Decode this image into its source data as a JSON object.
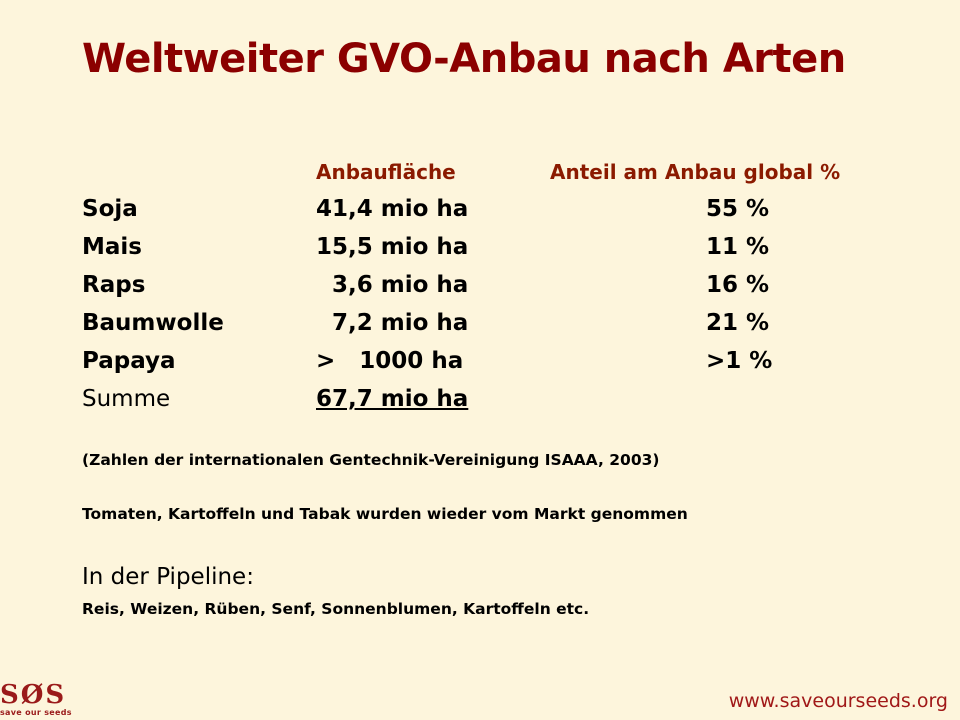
{
  "title": "Weltweiter GVO-Anbau nach Arten",
  "columns": {
    "area": "Anbaufläche",
    "share": "Anteil am Anbau global %"
  },
  "rows": [
    {
      "crop": "Soja",
      "area": "41,4 mio ha",
      "share": "55 %"
    },
    {
      "crop": "Mais",
      "area": "15,5 mio ha",
      "share": "11 %"
    },
    {
      "crop": "Raps",
      "area": "  3,6 mio ha",
      "share": "16 %"
    },
    {
      "crop": "Baumwolle",
      "area": "  7,2 mio ha",
      "share": "21 %"
    },
    {
      "crop": "Papaya",
      "area": ">   1000 ha",
      "share": ">1 %"
    }
  ],
  "total": {
    "label": "Summe",
    "area": "67,7 mio ha"
  },
  "source_note": "(Zahlen der internationalen Gentechnik-Vereinigung ISAAA, 2003)",
  "withdrawn_note": "Tomaten, Kartoffeln und Tabak wurden wieder vom Markt genommen",
  "pipeline": {
    "label": "In der Pipeline:",
    "items": "Reis, Weizen, Rüben, Senf, Sonnenblumen, Kartoffeln etc."
  },
  "logo": {
    "mark": "SØS",
    "tagline": "save our seeds"
  },
  "footer_url": "www.saveourseeds.org",
  "colors": {
    "title": "#8b0000",
    "header": "#8b1a00",
    "background": "#fdf5dc"
  }
}
